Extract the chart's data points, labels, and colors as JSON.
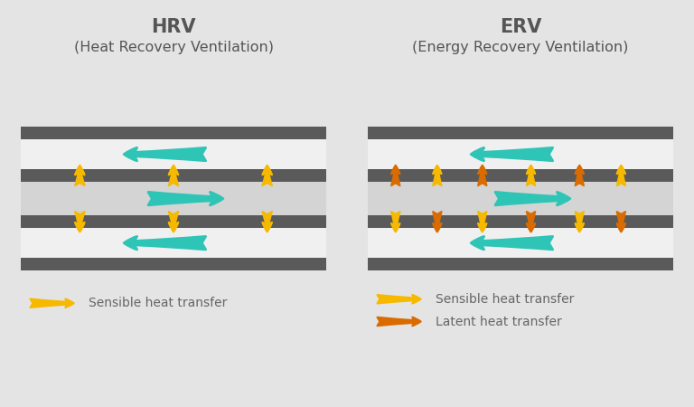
{
  "bg_color": "#e4e4e4",
  "box_bg_hrv": "#ececec",
  "box_bg_erv": "#e8e8e8",
  "dark_stripe": "#5a5a5a",
  "mem_color": "#d0d0d0",
  "teal_color": "#2ec4b6",
  "yellow_color": "#f6b900",
  "orange_color": "#d96b00",
  "hrv_title": "HRV",
  "hrv_subtitle": "(Heat Recovery Ventilation)",
  "erv_title": "ERV",
  "erv_subtitle": "(Energy Recovery Ventilation)",
  "title_fontsize": 15,
  "subtitle_fontsize": 11.5,
  "legend_fontsize": 10,
  "sensible_label": "Sensible heat transfer",
  "latent_label": "Latent heat transfer"
}
